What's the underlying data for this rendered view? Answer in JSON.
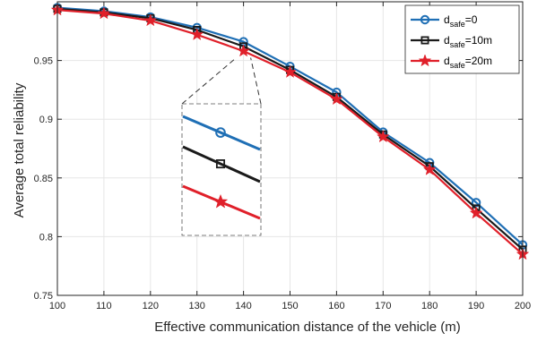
{
  "chart_data": {
    "type": "line",
    "title": "",
    "xlabel": "Effective communication distance of the vehicle (m)",
    "ylabel": "Average total reliability",
    "x": [
      100,
      110,
      120,
      130,
      140,
      150,
      160,
      170,
      180,
      190,
      200
    ],
    "xlim": [
      100,
      200
    ],
    "ylim": [
      0.75,
      1.0
    ],
    "x_ticks": [
      "100",
      "110",
      "120",
      "130",
      "140",
      "150",
      "160",
      "170",
      "180",
      "190",
      "200"
    ],
    "y_ticks": [
      {
        "value": 0.75,
        "label": "0.75"
      },
      {
        "value": 0.8,
        "label": "0.8"
      },
      {
        "value": 0.85,
        "label": "0.85"
      },
      {
        "value": 0.9,
        "label": "0.9"
      },
      {
        "value": 0.95,
        "label": "0.95"
      }
    ],
    "grid": true,
    "legend_position": "top-right",
    "series": [
      {
        "name_main": "d",
        "name_sub": "safe",
        "name_tail": "=0",
        "color": "#1f6fb5",
        "marker": "circle",
        "values": [
          0.995,
          0.992,
          0.987,
          0.978,
          0.966,
          0.945,
          0.923,
          0.889,
          0.863,
          0.829,
          0.793
        ]
      },
      {
        "name_main": "d",
        "name_sub": "safe",
        "name_tail": "=10m",
        "color": "#1a1a1a",
        "marker": "square",
        "values": [
          0.994,
          0.991,
          0.986,
          0.976,
          0.962,
          0.942,
          0.919,
          0.887,
          0.86,
          0.824,
          0.789
        ]
      },
      {
        "name_main": "d",
        "name_sub": "safe",
        "name_tail": "=20m",
        "color": "#e0202a",
        "marker": "star",
        "values": [
          0.993,
          0.99,
          0.984,
          0.972,
          0.958,
          0.94,
          0.917,
          0.885,
          0.857,
          0.82,
          0.785
        ]
      }
    ],
    "inset": {
      "source_x": 140,
      "source_y": 0.96,
      "description_free": true
    }
  }
}
